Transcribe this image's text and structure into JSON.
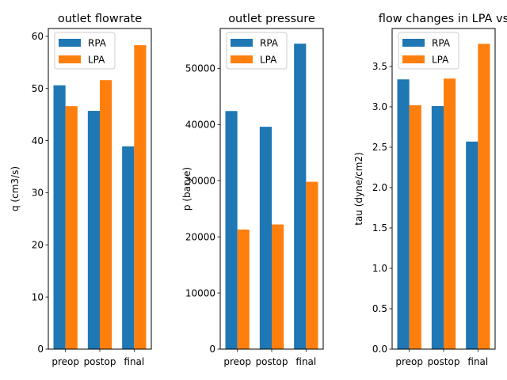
{
  "chart_data": [
    {
      "type": "bar",
      "title": "outlet flowrate",
      "xlabel": "",
      "ylabel": "q (cm3/s)",
      "categories": [
        "preop",
        "postop",
        "final"
      ],
      "series": [
        {
          "name": "RPA",
          "values": [
            50.6,
            45.7,
            38.9
          ]
        },
        {
          "name": "LPA",
          "values": [
            46.6,
            51.6,
            58.3
          ]
        }
      ],
      "ylim": [
        0,
        61.5
      ],
      "yticks": [
        "0",
        "10",
        "20",
        "30",
        "40",
        "50",
        "60"
      ],
      "legend": "top-left",
      "grid": false
    },
    {
      "type": "bar",
      "title": "outlet pressure",
      "xlabel": "",
      "ylabel": "p (barye)",
      "categories": [
        "preop",
        "postop",
        "final"
      ],
      "series": [
        {
          "name": "RPA",
          "values": [
            42400,
            39600,
            54400
          ]
        },
        {
          "name": "LPA",
          "values": [
            21300,
            22200,
            29800
          ]
        }
      ],
      "ylim": [
        0,
        57100
      ],
      "yticks": [
        "0",
        "10000",
        "20000",
        "30000",
        "40000",
        "50000"
      ],
      "legend": "top-left",
      "grid": false
    },
    {
      "type": "bar",
      "title": "flow changes in LPA vs",
      "xlabel": "",
      "ylabel": "tau (dyne/cm2)",
      "categories": [
        "preop",
        "postop",
        "final"
      ],
      "series": [
        {
          "name": "RPA",
          "values": [
            3.34,
            3.01,
            2.57
          ]
        },
        {
          "name": "LPA",
          "values": [
            3.02,
            3.35,
            3.78
          ]
        }
      ],
      "ylim": [
        0,
        3.97
      ],
      "yticks": [
        "0.0",
        "0.5",
        "1.0",
        "1.5",
        "2.0",
        "2.5",
        "3.0",
        "3.5"
      ],
      "legend": "top-left",
      "grid": false
    }
  ],
  "colors": {
    "RPA": "#1f77b4",
    "LPA": "#ff7f0e"
  }
}
